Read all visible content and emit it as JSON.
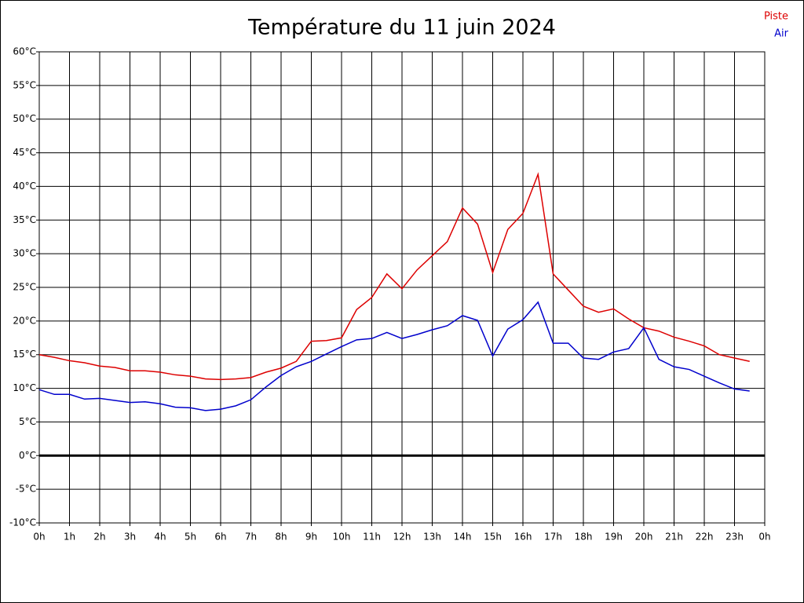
{
  "chart_data": {
    "type": "line",
    "title": "Température du 11 juin 2024",
    "x": [
      0,
      0.5,
      1,
      1.5,
      2,
      2.5,
      3,
      3.5,
      4,
      4.5,
      5,
      5.5,
      6,
      6.5,
      7,
      7.5,
      8,
      8.5,
      9,
      9.5,
      10,
      10.5,
      11,
      11.5,
      12,
      12.5,
      13,
      13.5,
      14,
      14.5,
      15,
      15.5,
      16,
      16.5,
      17,
      17.5,
      18,
      18.5,
      19,
      19.5,
      20,
      20.5,
      21,
      21.5,
      22,
      22.5,
      23,
      23.5
    ],
    "series": [
      {
        "name": "Piste",
        "color": "#dd0000",
        "values": [
          15.0,
          14.6,
          14.1,
          13.8,
          13.3,
          13.1,
          12.6,
          12.6,
          12.4,
          12.0,
          11.8,
          11.4,
          11.3,
          11.4,
          11.6,
          12.4,
          13.0,
          14.0,
          17.0,
          17.1,
          17.5,
          21.7,
          23.5,
          27.0,
          24.8,
          27.6,
          29.7,
          31.8,
          36.8,
          34.4,
          27.2,
          33.6,
          36.0,
          41.8,
          27.0,
          24.6,
          22.2,
          21.3,
          21.8,
          20.3,
          19.0,
          18.5,
          17.6,
          17.0,
          16.3,
          15.0,
          14.5,
          14.0
        ]
      },
      {
        "name": "Air",
        "color": "#0000cc",
        "values": [
          9.8,
          9.1,
          9.1,
          8.4,
          8.5,
          8.2,
          7.9,
          8.0,
          7.7,
          7.2,
          7.1,
          6.7,
          6.9,
          7.4,
          8.3,
          10.2,
          11.9,
          13.2,
          14.0,
          15.1,
          16.2,
          17.2,
          17.4,
          18.3,
          17.4,
          18.0,
          18.7,
          19.3,
          20.8,
          20.1,
          14.8,
          18.8,
          20.2,
          22.8,
          16.7,
          16.7,
          14.5,
          14.3,
          15.4,
          15.9,
          19.0,
          14.3,
          13.2,
          12.8,
          11.8,
          10.8,
          9.9,
          9.6
        ]
      }
    ],
    "xlim": [
      0,
      24
    ],
    "xticks": [
      {
        "value": 0,
        "label": "0h"
      },
      {
        "value": 1,
        "label": "1h"
      },
      {
        "value": 2,
        "label": "2h"
      },
      {
        "value": 3,
        "label": "3h"
      },
      {
        "value": 4,
        "label": "4h"
      },
      {
        "value": 5,
        "label": "5h"
      },
      {
        "value": 6,
        "label": "6h"
      },
      {
        "value": 7,
        "label": "7h"
      },
      {
        "value": 8,
        "label": "8h"
      },
      {
        "value": 9,
        "label": "9h"
      },
      {
        "value": 10,
        "label": "10h"
      },
      {
        "value": 11,
        "label": "11h"
      },
      {
        "value": 12,
        "label": "12h"
      },
      {
        "value": 13,
        "label": "13h"
      },
      {
        "value": 14,
        "label": "14h"
      },
      {
        "value": 15,
        "label": "15h"
      },
      {
        "value": 16,
        "label": "16h"
      },
      {
        "value": 17,
        "label": "17h"
      },
      {
        "value": 18,
        "label": "18h"
      },
      {
        "value": 19,
        "label": "19h"
      },
      {
        "value": 20,
        "label": "20h"
      },
      {
        "value": 21,
        "label": "21h"
      },
      {
        "value": 22,
        "label": "22h"
      },
      {
        "value": 23,
        "label": "23h"
      },
      {
        "value": 24,
        "label": "0h"
      }
    ],
    "ylim": [
      -10,
      60
    ],
    "yticks": [
      {
        "value": -10,
        "label": "-10°C"
      },
      {
        "value": -5,
        "label": "-5°C"
      },
      {
        "value": 0,
        "label": "0°C"
      },
      {
        "value": 5,
        "label": "5°C"
      },
      {
        "value": 10,
        "label": "10°C"
      },
      {
        "value": 15,
        "label": "15°C"
      },
      {
        "value": 20,
        "label": "20°C"
      },
      {
        "value": 25,
        "label": "25°C"
      },
      {
        "value": 30,
        "label": "30°C"
      },
      {
        "value": 35,
        "label": "35°C"
      },
      {
        "value": 40,
        "label": "40°C"
      },
      {
        "value": 45,
        "label": "45°C"
      },
      {
        "value": 50,
        "label": "50°C"
      },
      {
        "value": 55,
        "label": "55°C"
      },
      {
        "value": 60,
        "label": "60°C"
      }
    ],
    "grid": true,
    "legend": "top-right"
  }
}
